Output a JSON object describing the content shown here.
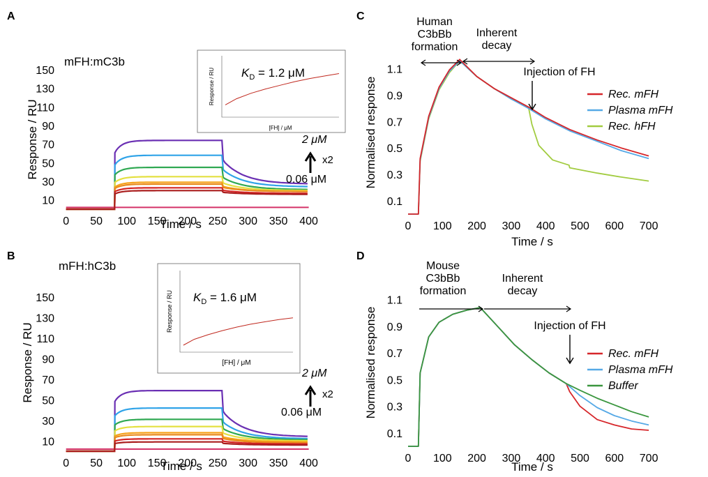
{
  "panel_labels": {
    "A": "A",
    "B": "B",
    "C": "C",
    "D": "D"
  },
  "colors": {
    "spr": [
      "#6a2fb3",
      "#2fa3e8",
      "#2fa852",
      "#e4e040",
      "#f6a21a",
      "#e98a1e",
      "#d42424",
      "#aa1d1d"
    ],
    "spr_baseline": "#d43268",
    "rec_mfh": "#d6262a",
    "plasma_mfh": "#56a9e6",
    "rec_hfh": "#a2cc40",
    "buffer": "#3a963e"
  },
  "annotations": {
    "top_conc": "2 μM",
    "bottom_conc": "0.06 μM",
    "x2": "x2"
  },
  "chart_data": [
    {
      "id": "A",
      "type": "line",
      "title": "mFH:mC3b",
      "xlabel": "Time / s",
      "ylabel": "Response / RU",
      "xlim": [
        -10,
        420
      ],
      "ylim": [
        0,
        150
      ],
      "xticks": [
        0,
        50,
        100,
        150,
        200,
        250,
        300,
        350,
        400
      ],
      "yticks": [
        10,
        30,
        50,
        70,
        90,
        110,
        130,
        150
      ],
      "injection_start": 80,
      "injection_end": 258,
      "series": [
        {
          "plateau": 74,
          "dissociation_end": 27
        },
        {
          "plateau": 58,
          "dissociation_end": 24
        },
        {
          "plateau": 45,
          "dissociation_end": 21
        },
        {
          "plateau": 35,
          "dissociation_end": 20
        },
        {
          "plateau": 29,
          "dissociation_end": 19
        },
        {
          "plateau": 27,
          "dissociation_end": 19
        },
        {
          "plateau": 23,
          "dissociation_end": 17
        },
        {
          "plateau": 20,
          "dissociation_end": 16
        }
      ],
      "baseline": 2,
      "inset": {
        "kd_symbol": "K",
        "kd_sub": "D",
        "kd_value": " = 1.2 μM",
        "xlabel": "[FH] / μM",
        "ylabel": "Response / RU",
        "xlim": [
          0,
          2
        ],
        "ylim": [
          0,
          100
        ],
        "x": [
          0.06,
          0.25,
          0.5,
          0.75,
          1.0,
          1.25,
          1.5,
          1.75,
          2.0
        ],
        "y": [
          20,
          30,
          39,
          46,
          52,
          58,
          63,
          67,
          71
        ]
      }
    },
    {
      "id": "B",
      "type": "line",
      "title": "mFH:hC3b",
      "xlabel": "Time / s",
      "ylabel": "Response / RU",
      "xlim": [
        -10,
        420
      ],
      "ylim": [
        0,
        150
      ],
      "xticks": [
        0,
        50,
        100,
        150,
        200,
        250,
        300,
        350,
        400
      ],
      "yticks": [
        10,
        30,
        50,
        70,
        90,
        110,
        130,
        150
      ],
      "injection_start": 80,
      "injection_end": 258,
      "series": [
        {
          "plateau": 59,
          "dissociation_end": 14
        },
        {
          "plateau": 42,
          "dissociation_end": 12
        },
        {
          "plateau": 31,
          "dissociation_end": 11
        },
        {
          "plateau": 24,
          "dissociation_end": 10
        },
        {
          "plateau": 18,
          "dissociation_end": 9
        },
        {
          "plateau": 16,
          "dissociation_end": 8
        },
        {
          "plateau": 12,
          "dissociation_end": 7
        },
        {
          "plateau": 9,
          "dissociation_end": 6
        }
      ],
      "baseline": 2,
      "inset": {
        "kd_symbol": "K",
        "kd_sub": "D",
        "kd_value": " = 1.6 μM",
        "xlabel": "[FH] / μM",
        "ylabel": "Response / RU",
        "xlim": [
          0,
          2
        ],
        "ylim": [
          0,
          140
        ],
        "x": [
          0.06,
          0.25,
          0.5,
          0.75,
          1.0,
          1.25,
          1.5,
          1.75,
          2.0
        ],
        "y": [
          12,
          22,
          30,
          37,
          43,
          48,
          52,
          56,
          59
        ]
      }
    },
    {
      "id": "C",
      "type": "line",
      "xlabel": "Time /  s",
      "ylabel": "Normalised response",
      "xlim": [
        0,
        720
      ],
      "ylim": [
        0,
        1.25
      ],
      "xticks": [
        0,
        100,
        200,
        300,
        400,
        500,
        600,
        700
      ],
      "yticks": [
        0.1,
        0.3,
        0.5,
        0.7,
        0.9,
        1.1
      ],
      "phase1": "Human\nC3bBb\nformation",
      "phase2": "Inherent\ndecay",
      "injection_label": "Injection of FH",
      "series": [
        {
          "name": "Rec. mFH",
          "x": [
            0,
            30,
            35,
            60,
            90,
            120,
            150,
            200,
            250,
            300,
            350,
            400,
            470,
            550,
            620,
            700
          ],
          "y": [
            0,
            0,
            0.42,
            0.74,
            0.96,
            1.09,
            1.17,
            1.04,
            0.95,
            0.88,
            0.81,
            0.73,
            0.64,
            0.56,
            0.5,
            0.44
          ]
        },
        {
          "name": "Plasma mFH",
          "x": [
            0,
            30,
            35,
            60,
            90,
            120,
            150,
            200,
            250,
            300,
            350,
            400,
            470,
            550,
            620,
            700
          ],
          "y": [
            0,
            0,
            0.41,
            0.73,
            0.95,
            1.08,
            1.16,
            1.04,
            0.95,
            0.87,
            0.8,
            0.72,
            0.63,
            0.55,
            0.48,
            0.42
          ]
        },
        {
          "name": "Rec. hFH",
          "x": [
            0,
            30,
            35,
            60,
            90,
            120,
            150,
            200,
            250,
            300,
            350,
            360,
            380,
            420,
            468,
            470,
            550,
            620,
            700
          ],
          "y": [
            0,
            0,
            0.4,
            0.72,
            0.94,
            1.07,
            1.16,
            1.04,
            0.95,
            0.87,
            0.81,
            0.68,
            0.52,
            0.41,
            0.37,
            0.35,
            0.31,
            0.28,
            0.25
          ]
        }
      ]
    },
    {
      "id": "D",
      "type": "line",
      "xlabel": "Time /  s",
      "ylabel": "Normalised response",
      "xlim": [
        0,
        720
      ],
      "ylim": [
        0,
        1.15
      ],
      "xticks": [
        0,
        100,
        200,
        300,
        400,
        500,
        600,
        700
      ],
      "yticks": [
        0.1,
        0.3,
        0.5,
        0.7,
        0.9,
        1.1
      ],
      "phase1": "Mouse\nC3bBb\nformation",
      "phase2": "Inherent\ndecay",
      "injection_label": "Injection of FH",
      "series": [
        {
          "name": "Rec. mFH",
          "x": [
            0,
            30,
            35,
            60,
            90,
            130,
            170,
            210,
            260,
            310,
            360,
            410,
            460,
            470,
            500,
            550,
            600,
            650,
            700
          ],
          "y": [
            0,
            0,
            0.55,
            0.82,
            0.93,
            0.99,
            1.02,
            1.04,
            0.9,
            0.76,
            0.65,
            0.55,
            0.47,
            0.41,
            0.3,
            0.2,
            0.16,
            0.13,
            0.12
          ]
        },
        {
          "name": "Plasma mFH",
          "x": [
            0,
            30,
            35,
            60,
            90,
            130,
            170,
            210,
            260,
            310,
            360,
            410,
            460,
            500,
            550,
            600,
            650,
            700
          ],
          "y": [
            0,
            0,
            0.55,
            0.82,
            0.93,
            0.99,
            1.02,
            1.04,
            0.9,
            0.76,
            0.65,
            0.55,
            0.47,
            0.38,
            0.29,
            0.23,
            0.19,
            0.16
          ]
        },
        {
          "name": "Buffer",
          "x": [
            0,
            30,
            35,
            60,
            90,
            130,
            170,
            210,
            260,
            310,
            360,
            410,
            460,
            500,
            550,
            600,
            650,
            700
          ],
          "y": [
            0,
            0,
            0.55,
            0.82,
            0.93,
            0.99,
            1.02,
            1.04,
            0.9,
            0.76,
            0.65,
            0.55,
            0.47,
            0.42,
            0.36,
            0.31,
            0.26,
            0.22
          ]
        }
      ]
    }
  ]
}
